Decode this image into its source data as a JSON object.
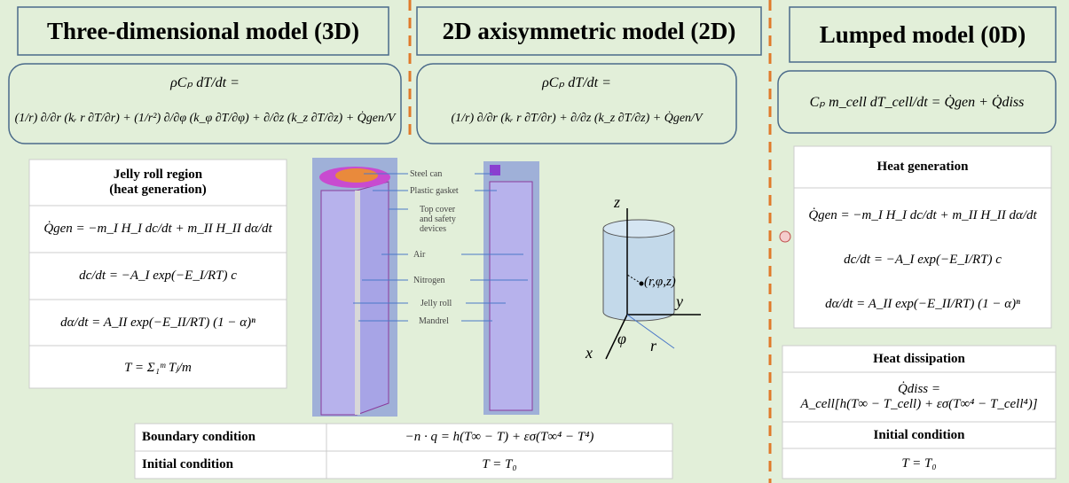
{
  "panel_3d": {
    "title": "Three-dimensional model (3D)",
    "equation_lhs": "ρCₚ dT/dt =",
    "equation_rhs": "(1/r) ∂/∂r (kᵣ r ∂T/∂r) + (1/r²) ∂/∂φ (k_φ ∂T/∂φ) + ∂/∂z (k_z ∂T/∂z) + Q̇gen/V",
    "table": {
      "header": "Jelly roll region\n(heat generation)",
      "rows": [
        "Q̇gen = −m_I H_I dc/dt + m_II H_II dα/dt",
        "dc/dt = −A_I exp(−E_I/RT) c",
        "dα/dt = A_II exp(−E_II/RT) (1 − α)ⁿ",
        "T = Σ₁ᵐ Tⱼ/m"
      ]
    }
  },
  "figure": {
    "labels": [
      "Steel can",
      "Plastic gasket",
      "Top cover\nand safety\ndevices",
      "Air",
      "Nitrogen",
      "Jelly roll",
      "Mandrel"
    ],
    "axes": {
      "z": "z",
      "y": "y",
      "x": "x",
      "r": "r",
      "phi": "φ",
      "point": "(r,φ,z)"
    }
  },
  "conditions": {
    "rows": [
      [
        "Boundary condition",
        "−n · q = h(T∞ − T) + εσ(T∞⁴ − T⁴)"
      ],
      [
        "Initial condition",
        "T = T₀"
      ]
    ]
  },
  "panel_2d": {
    "title": "2D axisymmetric model (2D)",
    "equation_lhs": "ρCₚ dT/dt =",
    "equation_rhs": "(1/r) ∂/∂r (kᵣ r ∂T/∂r) + ∂/∂z (k_z ∂T/∂z) + Q̇gen/V"
  },
  "panel_0d": {
    "title": "Lumped model (0D)",
    "equation": "Cₚ m_cell dT_cell/dt = Q̇gen + Q̇diss",
    "heat_generation": {
      "header": "Heat generation",
      "rows": [
        "Q̇gen = −m_I H_I dc/dt + m_II H_II dα/dt",
        "dc/dt = −A_I exp(−E_I/RT) c",
        "dα/dt = A_II exp(−E_II/RT) (1 − α)ⁿ"
      ]
    },
    "heat_dissipation": {
      "header": "Heat dissipation",
      "rows": [
        "Q̇diss =\nA_cell[h(T∞ − T_cell) + εσ(T∞⁴ − T_cell⁴)]"
      ]
    },
    "initial_condition": {
      "header": "Initial condition",
      "rows": [
        "T = T₀"
      ]
    }
  }
}
